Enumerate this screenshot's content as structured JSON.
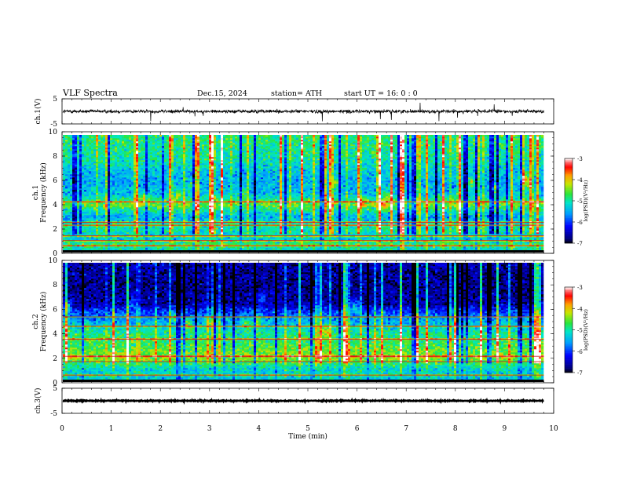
{
  "header": {
    "title": "VLF  Spectra",
    "date": "Dec.15, 2024",
    "station": "station= ATH",
    "start": "start  UT  =   16: 0  : 0"
  },
  "chart_data": [
    {
      "type": "line",
      "name": "ch1-waveform",
      "ylabel": "ch.1(V)",
      "ylim": [
        -5,
        5
      ],
      "y_ticks": [
        -5,
        5
      ],
      "xlim": [
        0,
        10
      ],
      "data_end_min": 9.8,
      "baseline": 0,
      "noise_amplitude": 0.6,
      "spike_amplitude": 2.5
    },
    {
      "type": "heatmap",
      "name": "ch1-spectrogram",
      "ylabel": "ch.1\nFrequency (kHz)",
      "xlim": [
        0,
        10
      ],
      "data_end_min": 9.8,
      "ylim": [
        0,
        10
      ],
      "y_ticks": [
        0,
        2,
        4,
        6,
        8,
        10
      ],
      "colorbar": {
        "label": "log(PSD)(V²/Hz)",
        "range": [
          -7,
          -3
        ],
        "ticks": [
          "-3",
          "-4",
          "-5",
          "-6",
          "-7"
        ]
      },
      "profile_khz": [
        [
          0,
          -5.2
        ],
        [
          0.6,
          -4.8
        ],
        [
          1.0,
          -5.3
        ],
        [
          2.0,
          -5.0
        ],
        [
          3.0,
          -5.5
        ],
        [
          4.0,
          -4.5
        ],
        [
          5.0,
          -5.4
        ],
        [
          6.0,
          -5.5
        ],
        [
          7.0,
          -5.3
        ],
        [
          8.0,
          -5.0
        ],
        [
          10.0,
          -4.8
        ]
      ],
      "lines_khz": [
        0.45,
        0.9,
        1.3,
        2.2,
        2.45,
        4.2
      ]
    },
    {
      "type": "heatmap",
      "name": "ch2-spectrogram",
      "ylabel": "ch.2\nFrequency (kHz)",
      "xlim": [
        0,
        10
      ],
      "data_end_min": 9.8,
      "ylim": [
        0,
        10
      ],
      "y_ticks": [
        0,
        2,
        4,
        6,
        8,
        10
      ],
      "colorbar": {
        "label": "log(PSD)(V²/Hz)",
        "range": [
          -7,
          -3
        ],
        "ticks": [
          "-3",
          "-4",
          "-5",
          "-6",
          "-7"
        ]
      },
      "profile_khz": [
        [
          0,
          -5.3
        ],
        [
          1.0,
          -5.2
        ],
        [
          2.0,
          -4.3
        ],
        [
          3.0,
          -4.7
        ],
        [
          4.0,
          -4.9
        ],
        [
          5.0,
          -5.5
        ],
        [
          6.0,
          -6.1
        ],
        [
          6.5,
          -6.6
        ],
        [
          8.0,
          -6.7
        ],
        [
          10.0,
          -6.6
        ]
      ],
      "lines_khz": [
        0.45,
        1.6,
        2.05,
        3.5,
        4.6,
        5.4
      ]
    },
    {
      "type": "line",
      "name": "ch3-waveform",
      "ylabel": "ch.3(V)",
      "ylim": [
        -5,
        5
      ],
      "y_ticks": [
        -5,
        5
      ],
      "xlim": [
        0,
        10
      ],
      "data_end_min": 9.8,
      "baseline": 0,
      "noise_amplitude": 0.15
    }
  ],
  "x_axis": {
    "label": "Time  (min)",
    "ticks": [
      "0",
      "1",
      "2",
      "3",
      "4",
      "5",
      "6",
      "7",
      "8",
      "9",
      "10"
    ]
  }
}
